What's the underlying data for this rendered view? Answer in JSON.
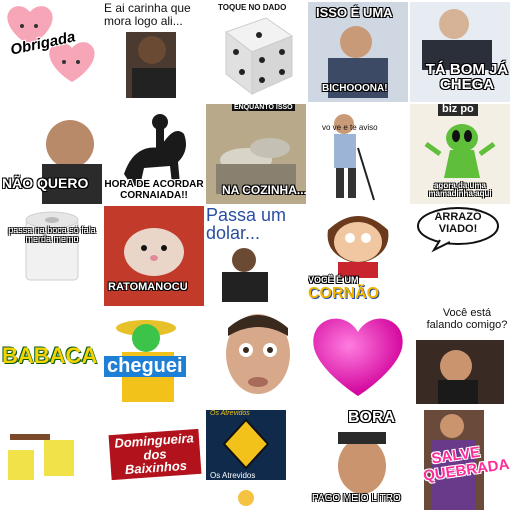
{
  "stickers": [
    {
      "id": 1,
      "caption": "Obrigada"
    },
    {
      "id": 2,
      "caption": "E ai carinha que mora logo ali..."
    },
    {
      "id": 3,
      "caption": "TOQUE NO DADO"
    },
    {
      "id": 4,
      "caption_top": "ISSO É UMA",
      "caption_bottom": "BICHOOONA!"
    },
    {
      "id": 5,
      "caption": "TÁ BOM JÁ CHEGA"
    },
    {
      "id": 6,
      "caption": "NÃO QUERO"
    },
    {
      "id": 7,
      "caption": "HORA DE ACORDAR CORNAIADA!!"
    },
    {
      "id": 8,
      "caption_top": "ENQUANTO ISSO",
      "caption_bottom": "NA COZINHA..."
    },
    {
      "id": 9,
      "caption": "vo ve e te aviso"
    },
    {
      "id": 10,
      "caption_top": "biz po",
      "caption_bottom": "agora da uma mamadinha aqui"
    },
    {
      "id": 11,
      "caption": "passa na boca só fala merda memo"
    },
    {
      "id": 12,
      "caption": "RATOMANOCU"
    },
    {
      "id": 13,
      "caption": "Passa um dolar..."
    },
    {
      "id": 14,
      "caption_top": "VOCÊ É UM",
      "caption_bottom": "CORNÃO"
    },
    {
      "id": 15,
      "caption": "ARRAZÔ VIADO!"
    },
    {
      "id": 16,
      "caption": "BABACA"
    },
    {
      "id": 17,
      "caption": "cheguei"
    },
    {
      "id": 18,
      "caption": ""
    },
    {
      "id": 19,
      "caption": ""
    },
    {
      "id": 20,
      "caption": "Você está falando comigo?"
    },
    {
      "id": 21,
      "caption": ""
    },
    {
      "id": 22,
      "caption": "Domingueira dos Baixinhos"
    },
    {
      "id": 23,
      "caption_top": "Os Atrevidos",
      "caption_bottom": "Os Atrevidos"
    },
    {
      "id": 24,
      "caption_top": "BORA",
      "caption_bottom": "PAGO MEIO LITRO"
    },
    {
      "id": 25,
      "caption": "SALVE QUEBRADA"
    }
  ],
  "colors": {
    "heart": "#ff2db4",
    "bg": "#ffffff"
  }
}
